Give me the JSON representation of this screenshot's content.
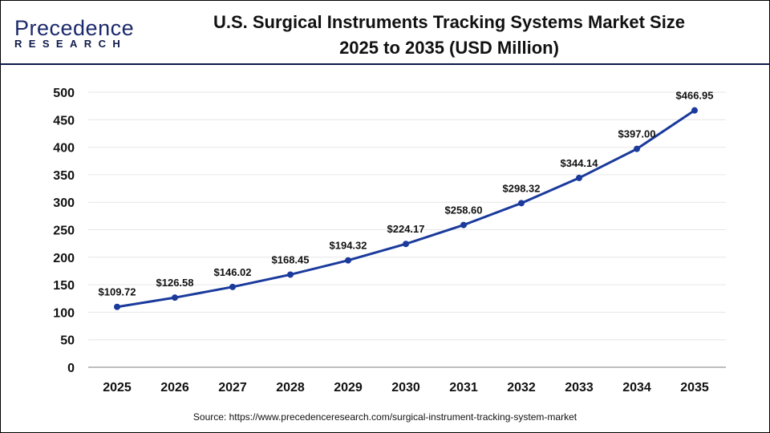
{
  "logo": {
    "line1": "Precedence",
    "line2": "RESEARCH"
  },
  "title_line1": "U.S. Surgical Instruments Tracking Systems Market Size",
  "title_line2": "2025 to 2035 (USD Million)",
  "source": "Source: https://www.precedenceresearch.com/surgical-instrument-tracking-system-market",
  "colors": {
    "line": "#1a3a9c",
    "header_rule": "#0f1a4a",
    "grid": "#e6e6e6"
  },
  "chart_data": {
    "type": "line",
    "categories": [
      "2025",
      "2026",
      "2027",
      "2028",
      "2029",
      "2030",
      "2031",
      "2032",
      "2033",
      "2034",
      "2035"
    ],
    "values": [
      109.72,
      126.58,
      146.02,
      168.45,
      194.32,
      224.17,
      258.6,
      298.32,
      344.14,
      397.0,
      466.95
    ],
    "data_labels": [
      "$109.72",
      "$126.58",
      "$146.02",
      "$168.45",
      "$194.32",
      "$224.17",
      "$258.60",
      "$298.32",
      "$344.14",
      "$397.00",
      "$466.95"
    ],
    "ylim": [
      0,
      500
    ],
    "yticks": [
      0,
      50,
      100,
      150,
      200,
      250,
      300,
      350,
      400,
      450,
      500
    ],
    "grid": true,
    "xlabel": "",
    "ylabel": ""
  }
}
